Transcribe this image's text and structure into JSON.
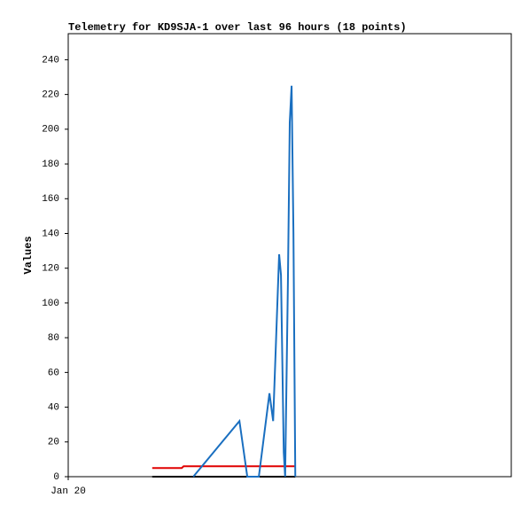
{
  "chart_data": {
    "type": "line",
    "title": "Telemetry for KD9SJA-1 over last 96 hours (18 points)",
    "ylabel": "Values",
    "x": [
      18.2,
      24.6,
      25.0,
      27.1,
      37.1,
      38.8,
      41.3,
      43.6,
      44.4,
      45.7,
      46.1,
      46.7,
      47.0,
      47.6,
      48.0,
      48.4,
      48.8,
      49.2
    ],
    "xlim": [
      0,
      96
    ],
    "xticks": [
      {
        "value": 0,
        "label": "Jan 20"
      }
    ],
    "ylim": [
      0,
      255
    ],
    "yticks": [
      0,
      20,
      40,
      60,
      80,
      100,
      120,
      140,
      160,
      180,
      200,
      220,
      240
    ],
    "series": [
      {
        "color": "#000000",
        "values": [
          0,
          0,
          0,
          0,
          0,
          0,
          0,
          0,
          0,
          0,
          0,
          0,
          0,
          0,
          0,
          0,
          0,
          0
        ]
      },
      {
        "color": "#e00000",
        "values": [
          5,
          5,
          6,
          6,
          6,
          6,
          6,
          6,
          6,
          6,
          6,
          6,
          6,
          6,
          6,
          6,
          6,
          6
        ]
      },
      {
        "color": "#1a6fc0",
        "values": [
          null,
          null,
          null,
          0,
          32,
          0,
          0,
          48,
          32,
          128,
          116,
          14,
          0,
          112,
          204,
          225,
          140,
          0
        ]
      }
    ]
  }
}
